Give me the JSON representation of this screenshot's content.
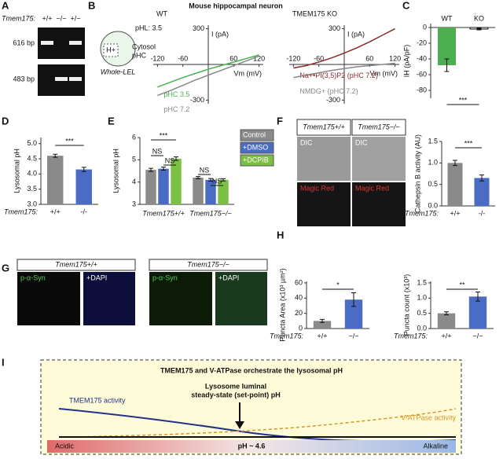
{
  "panel_labels": [
    "A",
    "B",
    "C",
    "D",
    "E",
    "F",
    "G",
    "H",
    "I"
  ],
  "gel": {
    "gene": "Tmem175:",
    "genotypes": [
      "+/+",
      "−/−",
      "+/−"
    ],
    "bands": [
      "616 bp",
      "483 bp"
    ]
  },
  "patch": {
    "title": "Mouse hippocampal neuron",
    "inset": [
      "pHL: 3.5",
      "H+",
      "Cytosol",
      "pHC",
      "Whole-LEL"
    ]
  },
  "imaging": {
    "genotypes": [
      "Tmem175+/+",
      "Tmem175−/−"
    ],
    "channels": [
      "DIC",
      "DIC",
      "Magic Red",
      "Magic Red"
    ]
  },
  "histology": {
    "genotypes": [
      "Tmem175+/+",
      "Tmem175−/−"
    ],
    "stains": [
      "p-α-Syn",
      "+DAPI",
      "p-α-Syn",
      "+DAPI"
    ]
  },
  "model": {
    "title": "TMEM175 and V-ATPase orchestrate the lysosomal pH",
    "tmem": "TMEM175 activity",
    "setpoint": [
      "Lysosome luminal",
      "steady-state (set-point) pH"
    ],
    "vatpase": "V-ATPase activity",
    "scale": [
      "Acidic",
      "pH ~ 4.6",
      "Alkaline"
    ]
  },
  "chart_data": [
    {
      "type": "line",
      "title": "WT",
      "xlabel": "Vm (mV)",
      "ylabel": "I (pA)",
      "x": [
        -120,
        -90,
        -60,
        -30,
        0,
        30,
        60,
        90,
        120
      ],
      "series": [
        {
          "name": "pHC 3.5",
          "color": "#4caf50",
          "values": [
            -190,
            -150,
            -110,
            -75,
            -40,
            -10,
            20,
            50,
            80
          ]
        },
        {
          "name": "pHC 7.2",
          "color": "#888888",
          "values": [
            -260,
            -220,
            -175,
            -130,
            -90,
            -50,
            -10,
            30,
            70
          ]
        }
      ],
      "xlim": [
        -130,
        130
      ],
      "ylim": [
        -330,
        330
      ],
      "xticks": [
        -120,
        -60,
        60,
        120
      ],
      "yticks": [
        -300,
        300
      ]
    },
    {
      "type": "line",
      "title": "TMEM175 KO",
      "xlabel": "Vm (mV)",
      "ylabel": "I (pA)",
      "x": [
        -120,
        -90,
        -60,
        -30,
        0,
        30,
        60,
        90,
        120
      ],
      "series": [
        {
          "name": "Na+•PI(3,5)P2 (pHC 7.2)",
          "color": "#8b2a2a",
          "values": [
            -30,
            -10,
            20,
            55,
            95,
            140,
            190,
            245,
            300
          ]
        },
        {
          "name": "NMDG+ (pHC 7.2)",
          "color": "#888888",
          "values": [
            -110,
            -90,
            -70,
            -50,
            -35,
            -20,
            -10,
            0,
            10
          ]
        }
      ],
      "xlim": [
        -130,
        130
      ],
      "ylim": [
        -330,
        330
      ],
      "xticks": [
        -120,
        -60,
        60,
        120
      ],
      "yticks": [
        -300,
        300
      ]
    },
    {
      "type": "bar",
      "ylabel": "IH (pA/pF)",
      "categories": [
        "WT",
        "KO"
      ],
      "values": [
        -48,
        -2
      ],
      "errors": [
        8,
        1
      ],
      "colors": [
        "#4caf50",
        "#ffffff"
      ],
      "ylim": [
        -90,
        5
      ],
      "yticks": [
        0,
        -20,
        -40,
        -60,
        -80
      ],
      "annotations": [
        "***"
      ]
    },
    {
      "type": "bar",
      "ylabel": "Lysosomal pH",
      "xlabel": "Tmem175:",
      "categories": [
        "+/+",
        "-/-"
      ],
      "values": [
        4.6,
        4.15
      ],
      "errors": [
        0.05,
        0.07
      ],
      "colors": [
        "#8a8a8a",
        "#4a6cc4"
      ],
      "ylim": [
        3,
        5.2
      ],
      "yticks": [
        {
          "value": 3,
          "label": "3.0"
        },
        3.5,
        {
          "value": 4,
          "label": "4.0"
        },
        4.5,
        {
          "value": 5,
          "label": "5.0"
        }
      ],
      "annotations": [
        "***"
      ]
    },
    {
      "type": "bar",
      "ylabel": "Lysosomal pH",
      "categories": [
        "Tmem175+/+",
        "Tmem175−/−"
      ],
      "series": [
        {
          "name": "Control",
          "color": "#8a8a8a",
          "values": [
            4.55,
            4.2
          ],
          "errors": [
            0.07,
            0.05
          ]
        },
        {
          "name": "+DMSO",
          "color": "#4a6cc4",
          "values": [
            4.6,
            4.1
          ],
          "errors": [
            0.07,
            0.06
          ]
        },
        {
          "name": "+DCPIB",
          "color": "#7cc043",
          "values": [
            5.05,
            4.1
          ],
          "errors": [
            0.08,
            0.05
          ]
        }
      ],
      "ylim": [
        3,
        6
      ],
      "yticks": [
        3,
        4,
        5,
        6
      ],
      "annotations": [
        "***",
        "NS",
        "NS",
        "NS",
        "NS"
      ]
    },
    {
      "type": "bar",
      "ylabel": "Cathepsin B activity (AU)",
      "xlabel": "Tmem175:",
      "categories": [
        "+/+",
        "-/-"
      ],
      "values": [
        1.0,
        0.65
      ],
      "errors": [
        0.06,
        0.07
      ],
      "colors": [
        "#8a8a8a",
        "#4a6cc4"
      ],
      "ylim": [
        0,
        1.5
      ],
      "yticks": [
        {
          "value": 0,
          "label": "0.0"
        },
        0.5,
        {
          "value": 1,
          "label": "1.0"
        },
        1.5
      ],
      "annotations": [
        "***"
      ]
    },
    {
      "type": "bar",
      "ylabel": "Puncta Area (x10³ µm²)",
      "xlabel": "Tmem175:",
      "categories": [
        "+/+",
        "−/−"
      ],
      "values": [
        10,
        38
      ],
      "errors": [
        2,
        9
      ],
      "colors": [
        "#8a8a8a",
        "#4a6cc4"
      ],
      "ylim": [
        0,
        62
      ],
      "yticks": [
        0,
        20,
        40,
        60
      ],
      "annotations": [
        "*"
      ]
    },
    {
      "type": "bar",
      "ylabel": "Puncta count (x10³)",
      "xlabel": "Tmem175:",
      "categories": [
        "+/+",
        "−/−"
      ],
      "values": [
        0.5,
        1.05
      ],
      "errors": [
        0.05,
        0.15
      ],
      "colors": [
        "#8a8a8a",
        "#4a6cc4"
      ],
      "ylim": [
        0,
        1.55
      ],
      "yticks": [
        {
          "value": 0,
          "label": "0.0"
        },
        0.5,
        {
          "value": 1,
          "label": "1.0"
        },
        1.5
      ],
      "annotations": [
        "**"
      ]
    }
  ]
}
